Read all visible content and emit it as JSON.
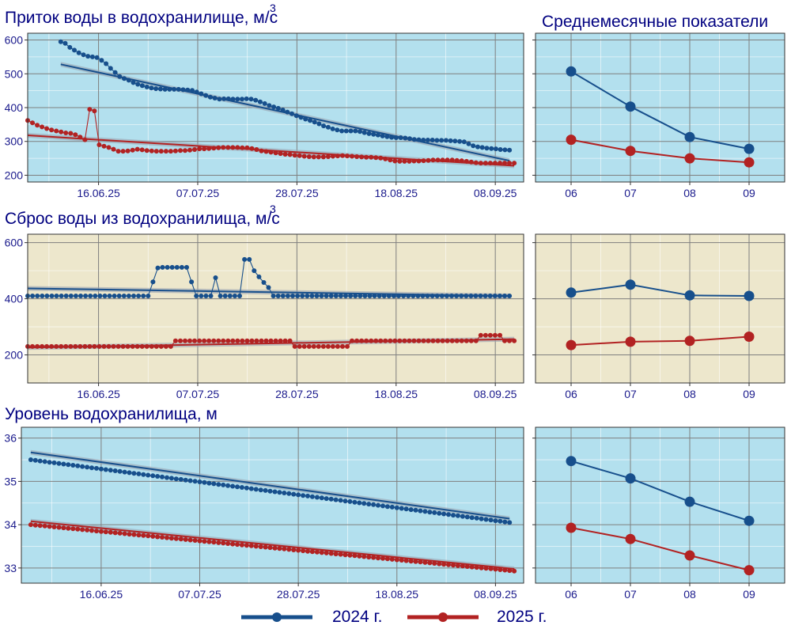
{
  "colors": {
    "series_2024": "#174f8c",
    "series_2025": "#b22222",
    "panel_bg_water": "#b3e0ee",
    "panel_bg_release": "#ede7cc",
    "title": "#000080",
    "tick": "#1a1a8c"
  },
  "legend": [
    {
      "label": "2024 г.",
      "color": "#174f8c"
    },
    {
      "label": "2025 г.",
      "color": "#b22222"
    }
  ],
  "chart_data": [
    {
      "id": "inflow",
      "type": "line",
      "title": "Приток воды в водохранилище, м/с",
      "title_superscript": "3",
      "x_type": "date",
      "xlim": [
        "2025-06-01",
        "2025-09-14"
      ],
      "x_ticks": [
        "16.06.25",
        "07.07.25",
        "28.07.25",
        "18.08.25",
        "08.09.25"
      ],
      "ylim": [
        180,
        620
      ],
      "y_ticks": [
        200,
        300,
        400,
        500,
        600
      ],
      "grid": true,
      "series": [
        {
          "name": "2024 г.",
          "color": "#174f8c",
          "x_start": "2025-06-08",
          "x_end": "2025-09-11",
          "values": [
            595,
            590,
            578,
            570,
            562,
            556,
            552,
            550,
            548,
            540,
            530,
            516,
            504,
            492,
            486,
            481,
            474,
            469,
            465,
            461,
            458,
            456,
            455,
            454,
            454,
            454,
            454,
            453,
            452,
            451,
            446,
            441,
            436,
            431,
            428,
            425,
            426,
            426,
            425,
            425,
            425,
            426,
            425,
            422,
            417,
            412,
            406,
            402,
            398,
            393,
            387,
            382,
            376,
            371,
            366,
            362,
            357,
            352,
            346,
            342,
            337,
            334,
            331,
            331,
            331,
            331,
            329,
            326,
            323,
            321,
            319,
            316,
            314,
            312,
            311,
            311,
            310,
            308,
            306,
            305,
            304,
            304,
            304,
            303,
            303,
            303,
            302,
            301,
            300,
            299,
            293,
            287,
            284,
            282,
            280,
            279,
            278,
            276,
            275,
            274
          ],
          "trend": [
            528,
            243
          ]
        },
        {
          "name": "2025 г.",
          "color": "#b22222",
          "x_start": "2025-06-01",
          "x_end": "2025-09-12",
          "values": [
            362,
            355,
            348,
            343,
            338,
            334,
            331,
            328,
            325,
            324,
            320,
            313,
            305,
            395,
            390,
            290,
            286,
            282,
            277,
            271,
            271,
            272,
            274,
            277,
            275,
            273,
            272,
            271,
            271,
            271,
            271,
            272,
            273,
            273,
            274,
            276,
            278,
            278,
            279,
            280,
            281,
            282,
            282,
            282,
            282,
            281,
            281,
            279,
            276,
            272,
            270,
            268,
            266,
            264,
            262,
            261,
            259,
            258,
            256,
            255,
            254,
            254,
            254,
            255,
            256,
            257,
            258,
            257,
            256,
            255,
            254,
            253,
            253,
            252,
            251,
            248,
            245,
            242,
            241,
            241,
            241,
            242,
            242,
            243,
            244,
            245,
            245,
            245,
            245,
            245,
            244,
            243,
            241,
            239,
            237,
            236,
            236,
            236,
            236,
            236,
            236,
            236,
            236
          ],
          "trend": [
            318,
            228
          ]
        }
      ]
    },
    {
      "id": "monthly_inflow",
      "type": "line",
      "title": "Среднемесячные показатели",
      "categories": [
        "06",
        "07",
        "08",
        "09"
      ],
      "ylim": [
        180,
        620
      ],
      "grid": true,
      "series": [
        {
          "name": "2024 г.",
          "color": "#174f8c",
          "values": [
            507,
            403,
            313,
            278
          ]
        },
        {
          "name": "2025 г.",
          "color": "#b22222",
          "values": [
            305,
            272,
            250,
            238
          ]
        }
      ]
    },
    {
      "id": "release",
      "type": "line",
      "title": "Сброс воды из водохранилища, м/с",
      "title_superscript": "3",
      "x_type": "date",
      "xlim": [
        "2025-06-01",
        "2025-09-14"
      ],
      "x_ticks": [
        "16.06.25",
        "07.07.25",
        "28.07.25",
        "18.08.25",
        "08.09.25"
      ],
      "ylim": [
        100,
        630
      ],
      "y_ticks": [
        200,
        400,
        600
      ],
      "grid": true,
      "series": [
        {
          "name": "2024 г.",
          "color": "#174f8c",
          "x_start": "2025-06-01",
          "x_end": "2025-09-11",
          "values": [
            410,
            410,
            410,
            410,
            410,
            410,
            410,
            410,
            410,
            410,
            410,
            410,
            410,
            410,
            410,
            410,
            410,
            410,
            410,
            410,
            410,
            410,
            410,
            410,
            410,
            410,
            410,
            410,
            410,
            410,
            410,
            410,
            410,
            410,
            410,
            410,
            410,
            410,
            410,
            410,
            410,
            410,
            410,
            410,
            410,
            410,
            410,
            410,
            410,
            410,
            410,
            410,
            410,
            410,
            410,
            410,
            410,
            410,
            410,
            410,
            410,
            410,
            410,
            410,
            410,
            410,
            410,
            410,
            410,
            410,
            410,
            410,
            410,
            410,
            410,
            410,
            410,
            410,
            410,
            410,
            410,
            410,
            410,
            410,
            410,
            410,
            410,
            410,
            410,
            410,
            410,
            410,
            410,
            410,
            410,
            410,
            410,
            410,
            410,
            410,
            410
          ],
          "overrides": [
            [
              26,
              460
            ],
            [
              27,
              510
            ],
            [
              28,
              512
            ],
            [
              29,
              512
            ],
            [
              30,
              512
            ],
            [
              31,
              512
            ],
            [
              32,
              512
            ],
            [
              33,
              512
            ],
            [
              34,
              460
            ],
            [
              39,
              475
            ],
            [
              45,
              540
            ],
            [
              46,
              540
            ],
            [
              47,
              500
            ],
            [
              48,
              478
            ],
            [
              49,
              458
            ],
            [
              50,
              440
            ]
          ],
          "trend": [
            437,
            410
          ]
        },
        {
          "name": "2025 г.",
          "color": "#b22222",
          "x_start": "2025-06-01",
          "x_end": "2025-09-12",
          "values": [
            230,
            230,
            230,
            230,
            230,
            230,
            230,
            230,
            230,
            230,
            230,
            230,
            230,
            230,
            230,
            230,
            230,
            230,
            230,
            230,
            230,
            230,
            230,
            230,
            230,
            230,
            230,
            230,
            230,
            230,
            230,
            250,
            250,
            250,
            250,
            250,
            250,
            250,
            250,
            250,
            250,
            250,
            250,
            250,
            250,
            250,
            250,
            250,
            250,
            250,
            250,
            250,
            250,
            250,
            250,
            250,
            230,
            230,
            230,
            230,
            230,
            230,
            230,
            230,
            230,
            230,
            230,
            230,
            250,
            250,
            250,
            250,
            250,
            250,
            250,
            250,
            250,
            250,
            250,
            250,
            250,
            250,
            250,
            250,
            250,
            250,
            250,
            250,
            250,
            250,
            250,
            250,
            250,
            250,
            250,
            270,
            270,
            270,
            270,
            270,
            250,
            250,
            250
          ],
          "trend": [
            226,
            256
          ]
        }
      ]
    },
    {
      "id": "monthly_release",
      "type": "line",
      "categories": [
        "06",
        "07",
        "08",
        "09"
      ],
      "ylim": [
        100,
        630
      ],
      "grid": true,
      "series": [
        {
          "name": "2024 г.",
          "color": "#174f8c",
          "values": [
            422,
            450,
            412,
            410
          ]
        },
        {
          "name": "2025 г.",
          "color": "#b22222",
          "values": [
            235,
            247,
            250,
            265
          ]
        }
      ]
    },
    {
      "id": "level",
      "type": "line",
      "title": "Уровень водохранилища, м",
      "x_type": "date",
      "xlim": [
        "2025-05-30",
        "2025-09-14"
      ],
      "x_ticks": [
        "16.06.25",
        "07.07.25",
        "28.07.25",
        "18.08.25",
        "08.09.25"
      ],
      "ylim": [
        32.65,
        36.25
      ],
      "y_ticks": [
        33,
        34,
        35,
        36
      ],
      "grid": true,
      "series": [
        {
          "name": "2024 г.",
          "color": "#174f8c",
          "x_start": "2025-06-01",
          "x_end": "2025-09-11",
          "start": 35.5,
          "end": 34.05,
          "trend": [
            35.67,
            34.14
          ]
        },
        {
          "name": "2025 г.",
          "color": "#b22222",
          "x_start": "2025-06-01",
          "x_end": "2025-09-12",
          "start": 34.0,
          "end": 32.93,
          "trend": [
            34.08,
            32.98
          ]
        }
      ]
    },
    {
      "id": "monthly_level",
      "type": "line",
      "categories": [
        "06",
        "07",
        "08",
        "09"
      ],
      "ylim": [
        32.65,
        36.25
      ],
      "grid": true,
      "series": [
        {
          "name": "2024 г.",
          "color": "#174f8c",
          "values": [
            35.47,
            35.07,
            34.53,
            34.09
          ]
        },
        {
          "name": "2025 г.",
          "color": "#b22222",
          "values": [
            33.93,
            33.67,
            33.29,
            32.95
          ]
        }
      ]
    }
  ]
}
